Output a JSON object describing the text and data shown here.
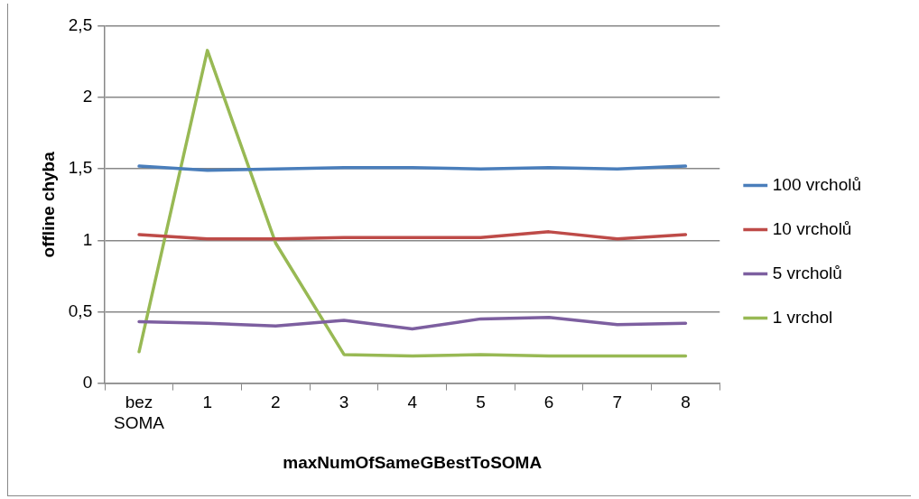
{
  "chart_data": {
    "type": "line",
    "xlabel": "maxNumOfSameGBestToSOMA",
    "ylabel": "offline chyba",
    "categories": [
      "bez SOMA",
      "1",
      "2",
      "3",
      "4",
      "5",
      "6",
      "7",
      "8"
    ],
    "series": [
      {
        "name": "100 vrcholů",
        "color": "#4a7ebb",
        "values": [
          1.52,
          1.49,
          1.5,
          1.51,
          1.51,
          1.5,
          1.51,
          1.5,
          1.52
        ]
      },
      {
        "name": "10 vrcholů",
        "color": "#be4b48",
        "values": [
          1.04,
          1.01,
          1.01,
          1.02,
          1.02,
          1.02,
          1.06,
          1.01,
          1.04
        ]
      },
      {
        "name": "5 vrcholů",
        "color": "#7d5fa0",
        "values": [
          0.43,
          0.42,
          0.4,
          0.44,
          0.38,
          0.45,
          0.46,
          0.41,
          0.42
        ]
      },
      {
        "name": "1 vrchol",
        "color": "#98b954",
        "values": [
          0.22,
          2.33,
          0.98,
          0.2,
          0.19,
          0.2,
          0.19,
          0.19,
          0.19
        ]
      }
    ],
    "ylim": [
      0,
      2.5
    ],
    "yticks": [
      0,
      {
        "value": 0.5,
        "label": "0,5"
      },
      1,
      {
        "value": 1.5,
        "label": "1,5"
      },
      2,
      {
        "value": 2.5,
        "label": "2,5"
      }
    ],
    "grid": "y",
    "legend": "right",
    "marker": "none",
    "line_style": "solid"
  }
}
